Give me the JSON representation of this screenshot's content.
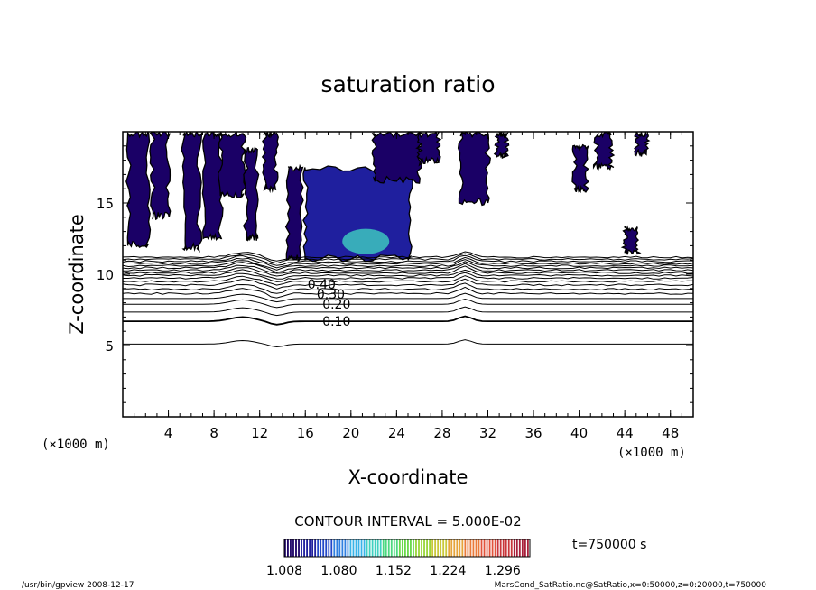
{
  "chart_data": {
    "type": "contour",
    "title": "saturation ratio",
    "xlabel": "X-coordinate",
    "ylabel": "Z-coordinate",
    "x_unit_label": "(×1000 m)",
    "y_unit_label": "(×1000 m)",
    "xlim": [
      0,
      50
    ],
    "ylim": [
      0,
      20
    ],
    "x_ticks": [
      4,
      8,
      12,
      16,
      20,
      24,
      28,
      32,
      36,
      40,
      44,
      48
    ],
    "x_minor_step": 1,
    "y_ticks": [
      5,
      10,
      15
    ],
    "y_minor_step": 1,
    "contour_interval_text": "CONTOUR INTERVAL = 5.000E-02",
    "contour_labels": [
      {
        "text": "0.10",
        "x": 17.5,
        "z": 6.7
      },
      {
        "text": "0.20",
        "x": 17.5,
        "z": 7.9
      },
      {
        "text": "0.30",
        "x": 17.0,
        "z": 8.6
      },
      {
        "text": "0.40",
        "x": 16.2,
        "z": 9.3
      }
    ],
    "contour_levels_z": [
      {
        "level": 0.05,
        "z": 5.1,
        "bump": 0.25
      },
      {
        "level": 0.1,
        "z": 6.7,
        "bump": 0.3
      },
      {
        "level": 0.15,
        "z": 7.35,
        "bump": 0.3
      },
      {
        "level": 0.2,
        "z": 7.9,
        "bump": 0.3
      },
      {
        "level": 0.25,
        "z": 8.3,
        "bump": 0.3
      },
      {
        "level": 0.3,
        "z": 8.65,
        "bump": 0.35
      },
      {
        "level": 0.35,
        "z": 8.95,
        "bump": 0.35
      },
      {
        "level": 0.4,
        "z": 9.25,
        "bump": 0.35
      },
      {
        "level": 0.45,
        "z": 9.5,
        "bump": 0.35
      },
      {
        "level": 0.5,
        "z": 9.72,
        "bump": 0.35
      },
      {
        "level": 0.55,
        "z": 9.92,
        "bump": 0.35
      },
      {
        "level": 0.6,
        "z": 10.1,
        "bump": 0.35
      },
      {
        "level": 0.65,
        "z": 10.28,
        "bump": 0.35
      },
      {
        "level": 0.7,
        "z": 10.45,
        "bump": 0.35
      },
      {
        "level": 0.75,
        "z": 10.6,
        "bump": 0.35
      },
      {
        "level": 0.8,
        "z": 10.75,
        "bump": 0.35
      },
      {
        "level": 0.85,
        "z": 10.9,
        "bump": 0.35
      },
      {
        "level": 0.9,
        "z": 11.05,
        "bump": 0.35
      },
      {
        "level": 0.95,
        "z": 11.2,
        "bump": 0.35
      }
    ],
    "supersaturated_regions": [
      {
        "x0": 0.5,
        "x1": 2.2,
        "z0": 12.0,
        "z1": 19.9,
        "value": 1.02
      },
      {
        "x0": 2.6,
        "x1": 4.0,
        "z0": 14.0,
        "z1": 19.9,
        "value": 1.02
      },
      {
        "x0": 5.3,
        "x1": 6.7,
        "z0": 11.8,
        "z1": 19.9,
        "value": 1.02
      },
      {
        "x0": 7.2,
        "x1": 8.6,
        "z0": 12.5,
        "z1": 19.9,
        "value": 1.02
      },
      {
        "x0": 8.6,
        "x1": 10.6,
        "z0": 15.5,
        "z1": 19.9,
        "value": 1.02
      },
      {
        "x0": 10.8,
        "x1": 11.8,
        "z0": 12.5,
        "z1": 18.8,
        "value": 1.02
      },
      {
        "x0": 12.4,
        "x1": 13.4,
        "z0": 16.0,
        "z1": 19.9,
        "value": 1.02
      },
      {
        "x0": 14.5,
        "x1": 15.6,
        "z0": 11.0,
        "z1": 17.5,
        "value": 1.02
      },
      {
        "x0": 16.0,
        "x1": 25.2,
        "z0": 11.0,
        "z1": 17.5,
        "value": 1.05
      },
      {
        "x0": 22.0,
        "x1": 26.0,
        "z0": 16.5,
        "z1": 19.9,
        "value": 1.02
      },
      {
        "x0": 26.0,
        "x1": 27.7,
        "z0": 17.8,
        "z1": 19.9,
        "value": 1.02
      },
      {
        "x0": 29.6,
        "x1": 32.0,
        "z0": 15.0,
        "z1": 19.9,
        "value": 1.02
      },
      {
        "x0": 32.8,
        "x1": 33.6,
        "z0": 18.2,
        "z1": 19.9,
        "value": 1.02
      },
      {
        "x0": 39.6,
        "x1": 40.6,
        "z0": 15.8,
        "z1": 19.0,
        "value": 1.02
      },
      {
        "x0": 41.5,
        "x1": 42.8,
        "z0": 17.5,
        "z1": 19.9,
        "value": 1.02
      },
      {
        "x0": 45.0,
        "x1": 45.9,
        "z0": 18.4,
        "z1": 19.9,
        "value": 1.02
      },
      {
        "x0": 44.0,
        "x1": 45.1,
        "z0": 11.5,
        "z1": 13.3,
        "value": 1.02
      }
    ],
    "peak_region": {
      "x": 21.3,
      "z": 12.3,
      "value": 1.12
    },
    "colorbar": {
      "min": 1.008,
      "max": 1.332,
      "tick_labels": [
        "1.008",
        "1.080",
        "1.152",
        "1.224",
        "1.296"
      ],
      "colors": [
        "#1a0066",
        "#1f1f9e",
        "#2347c8",
        "#2f7fe0",
        "#38b3e8",
        "#3fd0c0",
        "#4cd880",
        "#6ad94a",
        "#9ad63a",
        "#c9c83a",
        "#e6a43a",
        "#ea7a3a",
        "#e2533a",
        "#c9363a",
        "#a81f3a"
      ]
    },
    "time_label": "t=750000 s",
    "footer_left": "/usr/bin/gpview   2008-12-17",
    "footer_right": "MarsCond_SatRatio.nc@SatRatio,x=0:50000,z=0:20000,t=750000"
  }
}
